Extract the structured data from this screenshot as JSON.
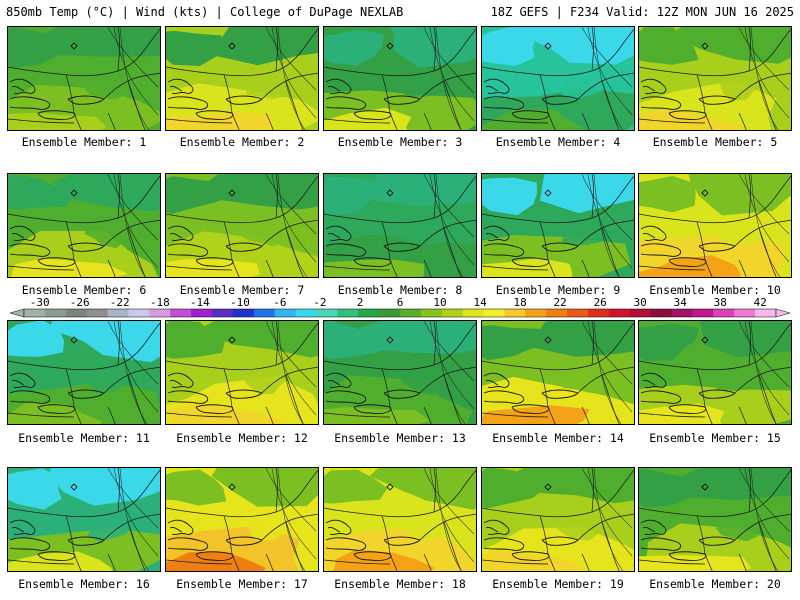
{
  "header": {
    "left_title": "850mb Temp (°C) | Wind (kts) | College of DuPage NEXLAB",
    "right_title": "18Z GEFS | F234 Valid: 12Z MON JUN 16 2025"
  },
  "colorbar": {
    "labels": [
      "-30",
      "-26",
      "-22",
      "-18",
      "-14",
      "-10",
      "-6",
      "-2",
      "2",
      "6",
      "10",
      "14",
      "18",
      "22",
      "26",
      "30",
      "34",
      "38",
      "42"
    ],
    "colors": [
      "#9fb3a6",
      "#8c9c94",
      "#7a857f",
      "#8f8f8f",
      "#a9b4c4",
      "#c9c9ee",
      "#d79be0",
      "#c14fd6",
      "#a020d0",
      "#5b2bc8",
      "#2233cc",
      "#1f72e8",
      "#35b5f0",
      "#3ad8e8",
      "#4bd4b8",
      "#33c07a",
      "#22a845",
      "#3c9a34",
      "#5cae2a",
      "#85c41f",
      "#b0d218",
      "#dde61b",
      "#f5ef2a",
      "#f7c92a",
      "#f4a318",
      "#ef7f12",
      "#e85a16",
      "#e0301c",
      "#d0142a",
      "#b20f33",
      "#8d0c3c",
      "#a01268",
      "#c2188c",
      "#dc3fb7",
      "#ee79d3",
      "#f7b9ec"
    ]
  },
  "members": [
    {
      "label": "Ensemble Member: 1",
      "palette": [
        "#33a046",
        "#4fae2e",
        "#7cbf22",
        "#a8cf1c"
      ]
    },
    {
      "label": "Ensemble Member: 2",
      "palette": [
        "#33a046",
        "#a8cf1c",
        "#d9e41c",
        "#f2d52a"
      ]
    },
    {
      "label": "Ensemble Member: 3",
      "palette": [
        "#2bb07a",
        "#33a046",
        "#7cbf22",
        "#d9e41c"
      ]
    },
    {
      "label": "Ensemble Member: 4",
      "palette": [
        "#3ad8e8",
        "#27c39a",
        "#2ea85a",
        "#4fae2e"
      ]
    },
    {
      "label": "Ensemble Member: 5",
      "palette": [
        "#4fae2e",
        "#a8cf1c",
        "#d9e41c",
        "#f2d52a"
      ]
    },
    {
      "label": "Ensemble Member: 6",
      "palette": [
        "#2ea85a",
        "#4fae2e",
        "#a8cf1c",
        "#e6e41c"
      ]
    },
    {
      "label": "Ensemble Member: 7",
      "palette": [
        "#33a046",
        "#7cbf22",
        "#b0d218",
        "#e6e41c"
      ]
    },
    {
      "label": "Ensemble Member: 8",
      "palette": [
        "#2bb07a",
        "#2ea85a",
        "#33a046",
        "#7cbf22"
      ]
    },
    {
      "label": "Ensemble Member: 9",
      "palette": [
        "#3ad8e8",
        "#2ea85a",
        "#7cbf22",
        "#d9e41c"
      ]
    },
    {
      "label": "Ensemble Member: 10",
      "palette": [
        "#7cbf22",
        "#d9e41c",
        "#f2d52a",
        "#f4a318"
      ]
    },
    {
      "label": "Ensemble Member: 11",
      "palette": [
        "#3ad8e8",
        "#2ea85a",
        "#4fae2e",
        "#7cbf22"
      ]
    },
    {
      "label": "Ensemble Member: 12",
      "palette": [
        "#4fae2e",
        "#a8cf1c",
        "#e6e41c",
        "#f2d52a"
      ]
    },
    {
      "label": "Ensemble Member: 13",
      "palette": [
        "#2bb07a",
        "#33a046",
        "#4fae2e",
        "#7cbf22"
      ]
    },
    {
      "label": "Ensemble Member: 14",
      "palette": [
        "#33a046",
        "#7cbf22",
        "#e6e41c",
        "#f4a318"
      ]
    },
    {
      "label": "Ensemble Member: 15",
      "palette": [
        "#33a046",
        "#4fae2e",
        "#a8cf1c",
        "#e6e41c"
      ]
    },
    {
      "label": "Ensemble Member: 16",
      "palette": [
        "#3ad8e8",
        "#2bb07a",
        "#7cbf22",
        "#d9e41c"
      ]
    },
    {
      "label": "Ensemble Member: 17",
      "palette": [
        "#7cbf22",
        "#e6e41c",
        "#f2c42a",
        "#ef7f12"
      ]
    },
    {
      "label": "Ensemble Member: 18",
      "palette": [
        "#7cbf22",
        "#d9e41c",
        "#f2d52a",
        "#f4a318"
      ]
    },
    {
      "label": "Ensemble Member: 19",
      "palette": [
        "#4fae2e",
        "#a8cf1c",
        "#e6e41c",
        "#f2d52a"
      ]
    },
    {
      "label": "Ensemble Member: 20",
      "palette": [
        "#33a046",
        "#4fae2e",
        "#a8cf1c",
        "#e6e41c"
      ]
    }
  ]
}
